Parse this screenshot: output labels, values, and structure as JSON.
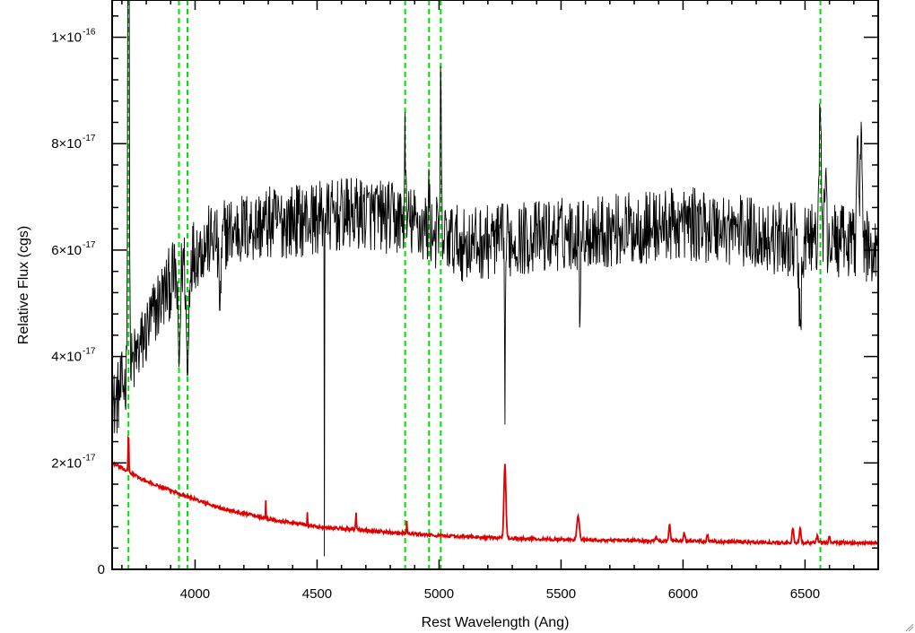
{
  "chart_data": {
    "type": "line",
    "title": "",
    "xlabel": "Rest Wavelength (Ang)",
    "ylabel": "Relative Flux (cgs)",
    "xlim": [
      3660,
      6800
    ],
    "ylim": [
      0,
      1.07e-16
    ],
    "x_ticks": [
      4000,
      4500,
      5000,
      5500,
      6000,
      6500
    ],
    "x_tick_labels": [
      "4000",
      "4500",
      "5000",
      "5500",
      "6000",
      "6500"
    ],
    "y_ticks": [
      {
        "value": 0,
        "mantissa": "0",
        "exponent": ""
      },
      {
        "value": 2e-17,
        "mantissa": "2×10",
        "exponent": "-17"
      },
      {
        "value": 4e-17,
        "mantissa": "4×10",
        "exponent": "-17"
      },
      {
        "value": 6e-17,
        "mantissa": "6×10",
        "exponent": "-17"
      },
      {
        "value": 8e-17,
        "mantissa": "8×10",
        "exponent": "-17"
      },
      {
        "value": 1e-16,
        "mantissa": "1×10",
        "exponent": "-16"
      }
    ],
    "grid": false,
    "vertical_lines": {
      "color": "#00e000",
      "style": "dashed",
      "x": [
        3727,
        3934,
        3969,
        4861,
        4959,
        5007,
        6563
      ]
    },
    "series": [
      {
        "color": "#000000",
        "spectrum": {
          "continuum": [
            [
              3660,
              3e-17
            ],
            [
              3700,
              3.4e-17
            ],
            [
              3760,
              4e-17
            ],
            [
              3850,
              5e-17
            ],
            [
              3950,
              5.8e-17
            ],
            [
              4100,
              6.3e-17
            ],
            [
              4300,
              6.5e-17
            ],
            [
              4500,
              6.6e-17
            ],
            [
              4700,
              6.7e-17
            ],
            [
              4900,
              6.5e-17
            ],
            [
              5100,
              6.1e-17
            ],
            [
              5300,
              6.2e-17
            ],
            [
              5500,
              6.3e-17
            ],
            [
              5800,
              6.4e-17
            ],
            [
              6000,
              6.5e-17
            ],
            [
              6200,
              6.4e-17
            ],
            [
              6400,
              6.2e-17
            ],
            [
              6600,
              6.2e-17
            ],
            [
              6800,
              6e-17
            ]
          ],
          "noise_amplitude": 7e-18,
          "features": [
            {
              "x": 3727,
              "height": 1.2e-16,
              "width": 3
            },
            {
              "x": 3934,
              "height": -1.8e-17,
              "width": 5
            },
            {
              "x": 3969,
              "height": -2.2e-17,
              "width": 5
            },
            {
              "x": 4102,
              "height": -1.2e-17,
              "width": 6
            },
            {
              "x": 4530,
              "height": -6e-17,
              "width": 0.6
            },
            {
              "x": 4861,
              "height": 1.8e-17,
              "width": 2
            },
            {
              "x": 4959,
              "height": 8e-18,
              "width": 2
            },
            {
              "x": 5007,
              "height": 3e-17,
              "width": 2
            },
            {
              "x": 5270,
              "height": -2.8e-17,
              "width": 2
            },
            {
              "x": 5577,
              "height": -1.3e-17,
              "width": 2
            },
            {
              "x": 6480,
              "height": -1.6e-17,
              "width": 6
            },
            {
              "x": 6563,
              "height": 2.6e-17,
              "width": 4
            },
            {
              "x": 6583,
              "height": 1.4e-17,
              "width": 3
            },
            {
              "x": 6716,
              "height": 2.6e-17,
              "width": 4
            },
            {
              "x": 6731,
              "height": 2e-17,
              "width": 4
            }
          ]
        }
      },
      {
        "color": "#e00000",
        "spectrum": {
          "continuum": [
            [
              3660,
              2e-17
            ],
            [
              3720,
              1.85e-17
            ],
            [
              3800,
              1.65e-17
            ],
            [
              3950,
              1.4e-17
            ],
            [
              4100,
              1.15e-17
            ],
            [
              4300,
              9.5e-18
            ],
            [
              4500,
              8e-18
            ],
            [
              4800,
              7e-18
            ],
            [
              5000,
              6.3e-18
            ],
            [
              5300,
              5.8e-18
            ],
            [
              5600,
              5.5e-18
            ],
            [
              6000,
              5.3e-18
            ],
            [
              6400,
              5e-18
            ],
            [
              6800,
              5e-18
            ]
          ],
          "noise_amplitude": 3e-19,
          "features": [
            {
              "x": 3727,
              "height": 8e-18,
              "width": 1.5
            },
            {
              "x": 4290,
              "height": 3.5e-18,
              "width": 1
            },
            {
              "x": 4460,
              "height": 2.5e-18,
              "width": 1
            },
            {
              "x": 4660,
              "height": 3.2e-18,
              "width": 1.5
            },
            {
              "x": 4868,
              "height": 2.6e-18,
              "width": 1
            },
            {
              "x": 5270,
              "height": 1.4e-17,
              "width": 4
            },
            {
              "x": 5570,
              "height": 4.5e-18,
              "width": 5
            },
            {
              "x": 5890,
              "height": 1e-18,
              "width": 2
            },
            {
              "x": 5945,
              "height": 3e-18,
              "width": 3
            },
            {
              "x": 6005,
              "height": 1.5e-18,
              "width": 3
            },
            {
              "x": 6100,
              "height": 1.2e-18,
              "width": 3
            },
            {
              "x": 6450,
              "height": 2.8e-18,
              "width": 3
            },
            {
              "x": 6480,
              "height": 3e-18,
              "width": 3
            },
            {
              "x": 6550,
              "height": 1.2e-18,
              "width": 3
            },
            {
              "x": 6600,
              "height": 1.4e-18,
              "width": 3
            }
          ]
        }
      }
    ]
  }
}
